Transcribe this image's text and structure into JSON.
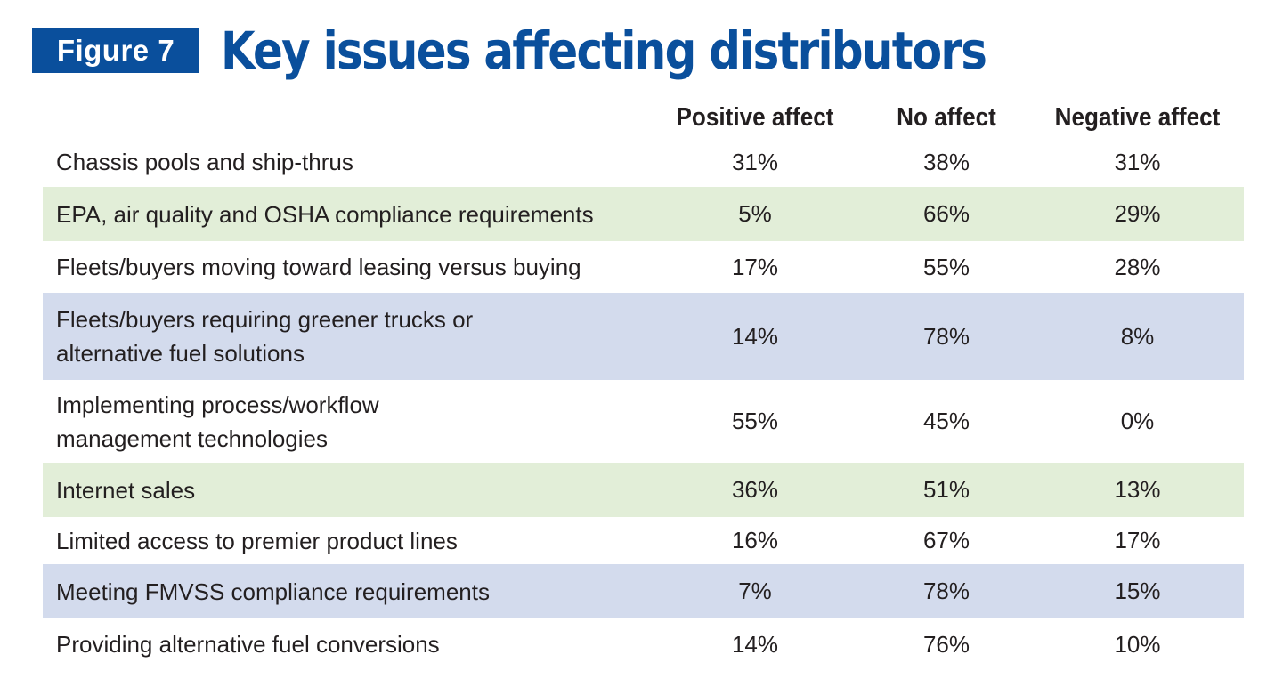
{
  "header": {
    "figure_label": "Figure 7",
    "title": "Key issues affecting distributors"
  },
  "colors": {
    "brand_blue": "#0a4f9c",
    "row_green": "#e2eed8",
    "row_blue": "#d3dbed"
  },
  "chart_data": {
    "type": "table",
    "title": "Key issues affecting distributors",
    "columns": [
      "Positive affect",
      "No affect",
      "Negative affect"
    ],
    "rows": [
      {
        "label": "Chassis pools and ship-thrus",
        "values": [
          "31%",
          "38%",
          "31%"
        ]
      },
      {
        "label": "EPA, air quality and OSHA compliance requirements",
        "values": [
          "5%",
          "66%",
          "29%"
        ]
      },
      {
        "label": "Fleets/buyers moving toward leasing versus buying",
        "values": [
          "17%",
          "55%",
          "28%"
        ]
      },
      {
        "label_lines": [
          "Fleets/buyers requiring greener trucks or",
          "alternative fuel solutions"
        ],
        "values": [
          "14%",
          "78%",
          "8%"
        ]
      },
      {
        "label_lines": [
          "Implementing process/workflow",
          "management technologies"
        ],
        "values": [
          "55%",
          "45%",
          "0%"
        ]
      },
      {
        "label": "Internet sales",
        "values": [
          "36%",
          "51%",
          "13%"
        ]
      },
      {
        "label": "Limited access to premier product lines",
        "values": [
          "16%",
          "67%",
          "17%"
        ]
      },
      {
        "label": "Meeting FMVSS compliance requirements",
        "values": [
          "7%",
          "78%",
          "15%"
        ]
      },
      {
        "label": "Providing alternative fuel conversions",
        "values": [
          "14%",
          "76%",
          "10%"
        ]
      }
    ]
  }
}
